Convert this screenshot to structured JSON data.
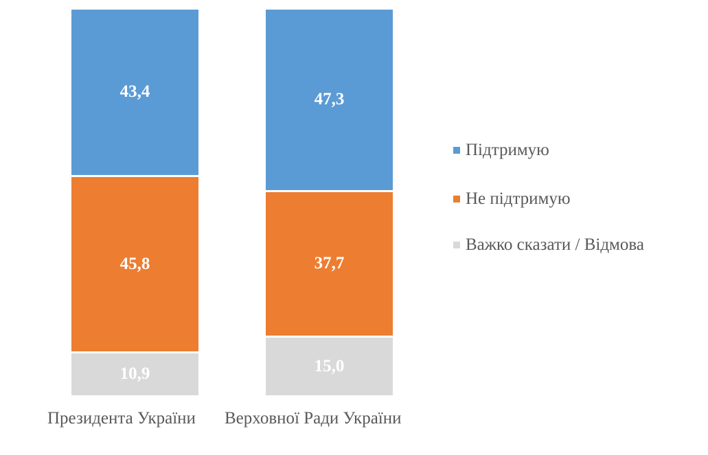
{
  "chart_data": {
    "type": "bar",
    "stacked": true,
    "percent_stacked": true,
    "title": "",
    "xlabel": "",
    "ylabel": "",
    "ylim": [
      0,
      100
    ],
    "grid": false,
    "legend_position": "right",
    "categories": [
      "Президента України",
      "Верховної Ради України"
    ],
    "series": [
      {
        "name": "Підтримую",
        "color": "#5B9BD5",
        "values": [
          43.4,
          47.3
        ],
        "labels": [
          "43,4",
          "47,3"
        ]
      },
      {
        "name": "Не підтримую",
        "color": "#ED7D31",
        "values": [
          45.8,
          37.7
        ],
        "labels": [
          "45,8",
          "37,7"
        ]
      },
      {
        "name": "Важко сказати / Відмова",
        "color": "#D9D9D9",
        "values": [
          10.9,
          15.0
        ],
        "labels": [
          "10,9",
          "15,0"
        ]
      }
    ]
  },
  "legend": [
    {
      "label": "Підтримую",
      "color": "#5B9BD5"
    },
    {
      "label": "Не підтримую",
      "color": "#ED7D31"
    },
    {
      "label": "Важко сказати / Відмова",
      "color": "#D9D9D9"
    }
  ]
}
